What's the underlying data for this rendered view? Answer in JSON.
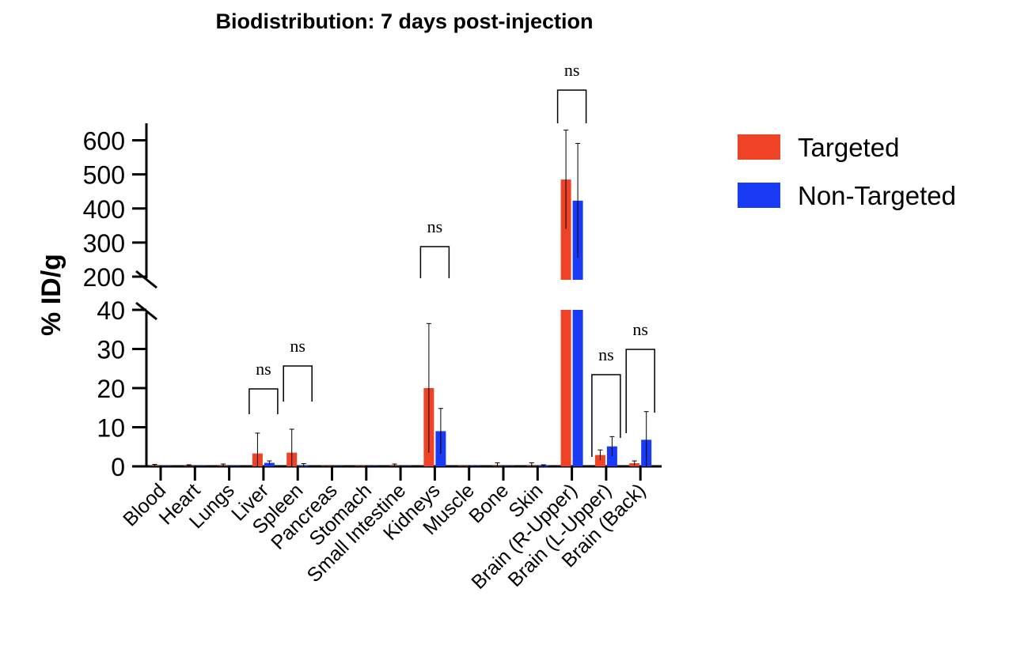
{
  "chart_data": {
    "type": "bar",
    "title": "Biodistribution: 7 days post-injection",
    "ylabel": "% ID/g",
    "xlabel": "",
    "y_axis_break": {
      "lower_range": [
        0,
        40
      ],
      "upper_range": [
        200,
        650
      ]
    },
    "yticks_lower": [
      "0",
      "10",
      "20",
      "30",
      "40"
    ],
    "yticks_upper": [
      "200",
      "300",
      "400",
      "500",
      "600"
    ],
    "categories": [
      "Blood",
      "Heart",
      "Lungs",
      "Liver",
      "Spleen",
      "Pancreas",
      "Stomach",
      "Small Intestine",
      "Kidneys",
      "Muscle",
      "Bone",
      "Skin",
      "Brain (R-Upper)",
      "Brain (L-Upper)",
      "Brain (Back)"
    ],
    "series": [
      {
        "name": "Targeted",
        "color": "#EE4327",
        "values": [
          0.1,
          0.1,
          0.1,
          3.3,
          3.5,
          0.1,
          0.1,
          0.1,
          20.0,
          0.1,
          0.1,
          0.1,
          485,
          2.9,
          0.8
        ],
        "errors": [
          0.4,
          0.3,
          0.5,
          5.2,
          6.0,
          0.1,
          0.1,
          0.5,
          16.5,
          0.1,
          0.8,
          0.8,
          145,
          1.3,
          0.6
        ]
      },
      {
        "name": "Non-Targeted",
        "color": "#1A3BF5",
        "values": [
          0.1,
          0.1,
          0.1,
          0.9,
          0.2,
          0.1,
          0.1,
          0.1,
          9.0,
          0.1,
          0.1,
          0.2,
          423,
          5.1,
          6.8
        ],
        "errors": [
          0.1,
          0.1,
          0.1,
          0.5,
          0.5,
          0.1,
          0.1,
          0.1,
          5.8,
          0.1,
          0.1,
          0.2,
          168,
          2.5,
          7.2
        ]
      }
    ],
    "significance": [
      {
        "category": "Liver",
        "label": "ns"
      },
      {
        "category": "Spleen",
        "label": "ns"
      },
      {
        "category": "Kidneys",
        "label": "ns"
      },
      {
        "category": "Brain (R-Upper)",
        "label": "ns"
      },
      {
        "category": "Brain (L-Upper)",
        "label": "ns"
      },
      {
        "category": "Brain (Back)",
        "label": "ns"
      }
    ],
    "legend": {
      "placement": "right"
    },
    "grid": false
  }
}
